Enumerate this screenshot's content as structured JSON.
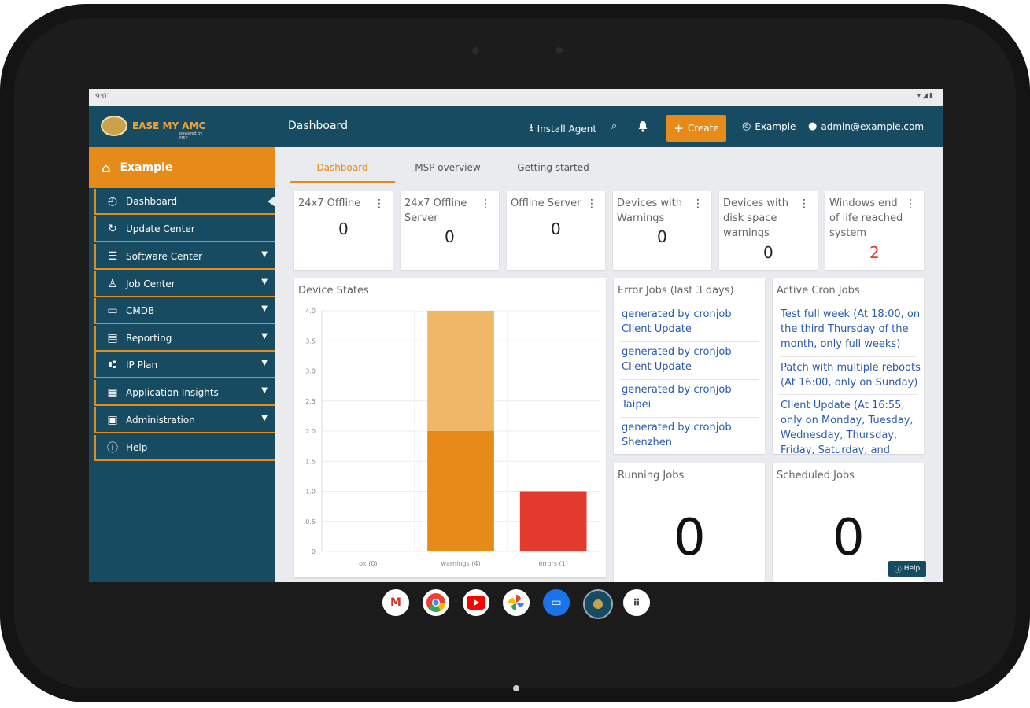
{
  "status_bar": {
    "time": "9:01",
    "icons": "wifi-icon signal-icon battery-icon"
  },
  "header": {
    "logo_text": "EASE MY AMC",
    "logo_sub": "powered by MSP",
    "title": "Dashboard",
    "install_agent": "Install Agent",
    "create": "Create",
    "tenant": "Example",
    "user": "admin@example.com"
  },
  "sidebar": {
    "tenant": "Example",
    "items": [
      {
        "label": "Dashboard",
        "icon": "gauge-icon",
        "expandable": false
      },
      {
        "label": "Update Center",
        "icon": "clock-update-icon",
        "expandable": false
      },
      {
        "label": "Software Center",
        "icon": "list-icon",
        "expandable": true
      },
      {
        "label": "Job Center",
        "icon": "user-job-icon",
        "expandable": true
      },
      {
        "label": "CMDB",
        "icon": "monitor-icon",
        "expandable": true
      },
      {
        "label": "Reporting",
        "icon": "report-icon",
        "expandable": true
      },
      {
        "label": "IP Plan",
        "icon": "network-icon",
        "expandable": true
      },
      {
        "label": "Application Insights",
        "icon": "document-icon",
        "expandable": true
      },
      {
        "label": "Administration",
        "icon": "admin-icon",
        "expandable": true
      },
      {
        "label": "Help",
        "icon": "help-icon",
        "expandable": false
      }
    ]
  },
  "tabs": [
    "Dashboard",
    "MSP overview",
    "Getting started"
  ],
  "stat_cards": [
    {
      "title": "24x7 Offline",
      "value": "0"
    },
    {
      "title": "24x7 Offline Server",
      "value": "0"
    },
    {
      "title": "Offline Server",
      "value": "0"
    },
    {
      "title": "Devices with Warnings",
      "value": "0"
    },
    {
      "title": "Devices with disk space warnings",
      "value": "0"
    },
    {
      "title": "Windows end of life reached system",
      "value": "2"
    }
  ],
  "device_states": {
    "title": "Device States",
    "chart_data": {
      "type": "bar",
      "categories": [
        "ok (0)",
        "warnings (4)",
        "errors (1)"
      ],
      "values": [
        0,
        4,
        1
      ],
      "ylim": [
        0,
        4
      ],
      "yticks": [
        "0",
        "0.5",
        "1.0",
        "1.5",
        "2.0",
        "2.5",
        "3.0",
        "3.5",
        "4.0"
      ],
      "grid": true,
      "colors": {
        "warnings_light": "#efb766",
        "warnings": "#e68a1a",
        "errors": "#e33b2e"
      }
    }
  },
  "error_jobs": {
    "title": "Error Jobs (last 3 days)",
    "items": [
      "generated by cronjob Client Update",
      "generated by cronjob Client Update",
      "generated by cronjob Taipei",
      "generated by cronjob Shenzhen"
    ]
  },
  "active_cron": {
    "title": "Active Cron Jobs",
    "items": [
      "Test full week (At 18:00, on the third Thursday of the month, only full weeks)",
      "Patch with multiple reboots (At 16:00, only on Sunday)",
      "Client Update (At 16:55, only on Monday, Tuesday, Wednesday, Thursday, Friday, Saturday, and"
    ]
  },
  "running_jobs": {
    "title": "Running Jobs",
    "value": "0"
  },
  "scheduled_jobs": {
    "title": "Scheduled Jobs",
    "value": "0"
  },
  "help_button": "Help",
  "dock": [
    "gmail-icon",
    "chrome-icon",
    "youtube-icon",
    "photos-icon",
    "messages-icon",
    "easemyamc-icon",
    "apps-icon"
  ],
  "colors": {
    "header": "#164b62",
    "accent": "#e68a1a",
    "link": "#2a5bb0"
  }
}
